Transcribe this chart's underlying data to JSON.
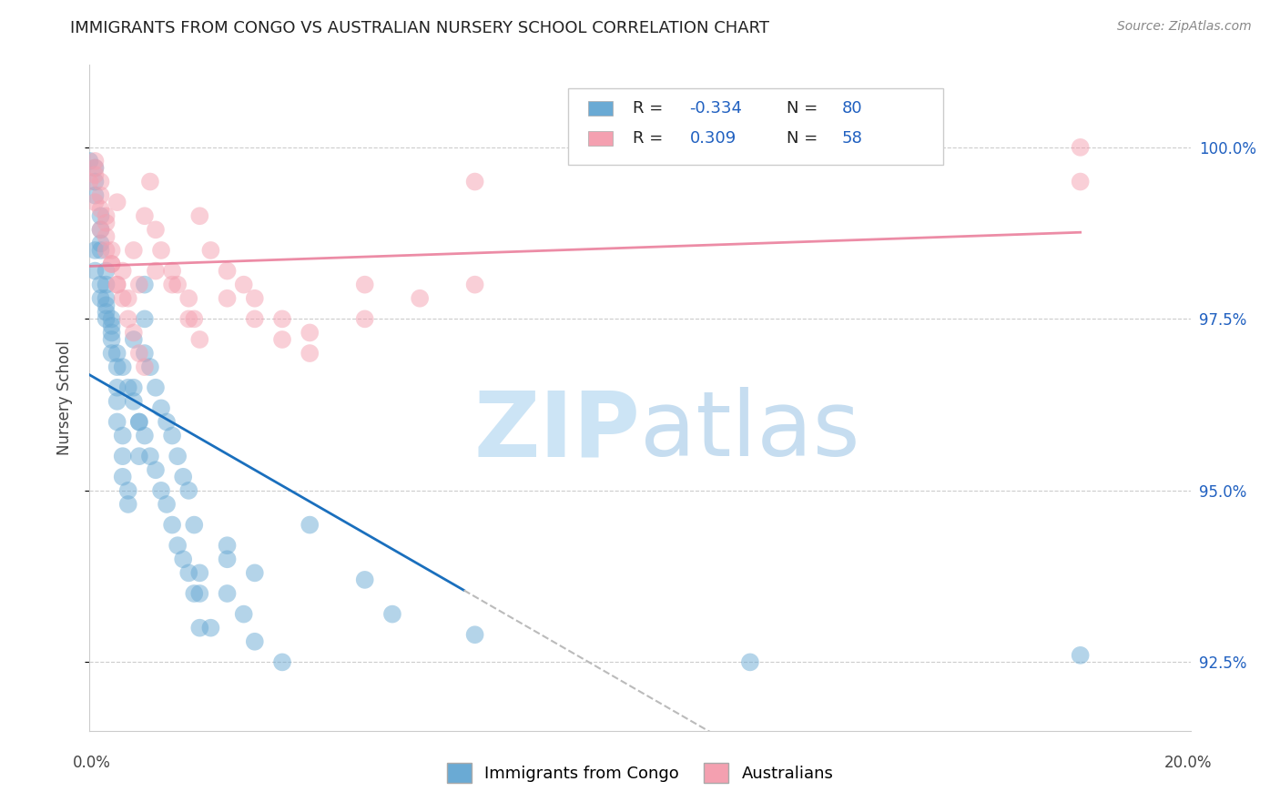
{
  "title": "IMMIGRANTS FROM CONGO VS AUSTRALIAN NURSERY SCHOOL CORRELATION CHART",
  "source": "Source: ZipAtlas.com",
  "ylabel": "Nursery School",
  "yticks": [
    92.5,
    95.0,
    97.5,
    100.0
  ],
  "ytick_labels": [
    "92.5%",
    "95.0%",
    "97.5%",
    "100.0%"
  ],
  "xlim": [
    0.0,
    0.2
  ],
  "ylim": [
    91.5,
    101.2
  ],
  "congo_R": -0.334,
  "congo_N": 80,
  "aus_R": 0.309,
  "aus_N": 58,
  "congo_color": "#6aaad4",
  "aus_color": "#f4a0b0",
  "congo_line_color": "#1a6fbd",
  "aus_line_color": "#e87090",
  "dashed_line_color": "#bbbbbb",
  "watermark_zip_color": "#cce4f5",
  "watermark_atlas_color": "#a8cce8",
  "background_color": "#ffffff",
  "legend_label_congo": "Immigrants from Congo",
  "legend_label_aus": "Australians",
  "congo_x": [
    0.0,
    0.001,
    0.001,
    0.001,
    0.002,
    0.002,
    0.002,
    0.002,
    0.003,
    0.003,
    0.003,
    0.003,
    0.003,
    0.004,
    0.004,
    0.004,
    0.004,
    0.005,
    0.005,
    0.005,
    0.005,
    0.006,
    0.006,
    0.006,
    0.007,
    0.007,
    0.008,
    0.008,
    0.009,
    0.009,
    0.01,
    0.01,
    0.01,
    0.011,
    0.012,
    0.013,
    0.014,
    0.015,
    0.016,
    0.017,
    0.018,
    0.019,
    0.02,
    0.02,
    0.022,
    0.025,
    0.025,
    0.028,
    0.03,
    0.035,
    0.001,
    0.001,
    0.002,
    0.002,
    0.003,
    0.004,
    0.005,
    0.006,
    0.007,
    0.008,
    0.009,
    0.01,
    0.011,
    0.012,
    0.013,
    0.014,
    0.015,
    0.016,
    0.017,
    0.018,
    0.019,
    0.02,
    0.025,
    0.03,
    0.04,
    0.05,
    0.055,
    0.07,
    0.12,
    0.18
  ],
  "congo_y": [
    99.8,
    99.7,
    99.5,
    99.3,
    99.0,
    98.8,
    98.6,
    98.5,
    98.2,
    98.0,
    97.8,
    97.7,
    97.6,
    97.5,
    97.4,
    97.2,
    97.0,
    96.8,
    96.5,
    96.3,
    96.0,
    95.8,
    95.5,
    95.2,
    95.0,
    94.8,
    97.2,
    96.5,
    96.0,
    95.5,
    98.0,
    97.5,
    97.0,
    96.8,
    96.5,
    96.2,
    96.0,
    95.8,
    95.5,
    95.2,
    95.0,
    94.5,
    93.8,
    93.5,
    93.0,
    94.0,
    93.5,
    93.2,
    92.8,
    92.5,
    98.5,
    98.2,
    98.0,
    97.8,
    97.5,
    97.3,
    97.0,
    96.8,
    96.5,
    96.3,
    96.0,
    95.8,
    95.5,
    95.3,
    95.0,
    94.8,
    94.5,
    94.2,
    94.0,
    93.8,
    93.5,
    93.0,
    94.2,
    93.8,
    94.5,
    93.7,
    93.2,
    92.9,
    92.5,
    92.6
  ],
  "aus_x": [
    0.0,
    0.001,
    0.001,
    0.001,
    0.002,
    0.002,
    0.002,
    0.003,
    0.003,
    0.003,
    0.004,
    0.004,
    0.005,
    0.005,
    0.006,
    0.007,
    0.008,
    0.009,
    0.01,
    0.012,
    0.015,
    0.018,
    0.02,
    0.025,
    0.03,
    0.035,
    0.04,
    0.05,
    0.07,
    0.18,
    0.001,
    0.002,
    0.003,
    0.004,
    0.005,
    0.006,
    0.007,
    0.008,
    0.009,
    0.01,
    0.011,
    0.012,
    0.013,
    0.015,
    0.016,
    0.018,
    0.019,
    0.02,
    0.022,
    0.025,
    0.028,
    0.03,
    0.035,
    0.04,
    0.05,
    0.06,
    0.07,
    0.18
  ],
  "aus_y": [
    99.5,
    99.8,
    99.7,
    99.6,
    99.5,
    99.3,
    99.1,
    98.9,
    98.7,
    99.0,
    98.5,
    98.3,
    98.0,
    99.2,
    98.2,
    97.8,
    98.5,
    98.0,
    99.0,
    98.2,
    98.0,
    97.5,
    97.2,
    97.8,
    97.5,
    97.2,
    97.0,
    98.0,
    99.5,
    100.0,
    99.2,
    98.8,
    98.5,
    98.3,
    98.0,
    97.8,
    97.5,
    97.3,
    97.0,
    96.8,
    99.5,
    98.8,
    98.5,
    98.2,
    98.0,
    97.8,
    97.5,
    99.0,
    98.5,
    98.2,
    98.0,
    97.8,
    97.5,
    97.3,
    97.5,
    97.8,
    98.0,
    99.5
  ]
}
